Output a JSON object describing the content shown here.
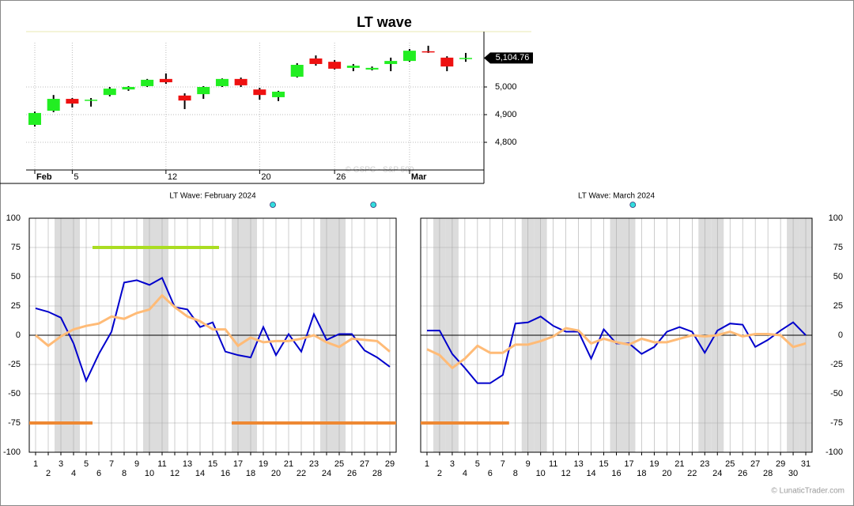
{
  "chart_data": [
    {
      "type": "candlestick",
      "title": "LT wave",
      "watermark": "© GSPC - S&P 500",
      "categories": [
        "Feb",
        null,
        "5",
        null,
        null,
        null,
        null,
        "12",
        null,
        null,
        null,
        null,
        "20",
        null,
        null,
        null,
        "26",
        null,
        null,
        null,
        "Mar",
        null,
        null,
        null
      ],
      "open": [
        4863,
        4914,
        4957,
        4951,
        4971,
        4991,
        5003,
        5029,
        4969,
        4974,
        5003,
        5029,
        4991,
        4963,
        5037,
        5103,
        5091,
        5069,
        5063,
        5083,
        5094,
        5129,
        5106,
        5103
      ],
      "high": [
        4911,
        4971,
        4960,
        4960,
        5000,
        5003,
        5029,
        5049,
        4977,
        5003,
        5031,
        5034,
        4997,
        4986,
        5086,
        5114,
        5097,
        5083,
        5074,
        5106,
        5137,
        5149,
        5111,
        5123
      ],
      "low": [
        4857,
        4909,
        4926,
        4929,
        4966,
        4986,
        5000,
        5011,
        4920,
        4957,
        5000,
        5000,
        4954,
        4949,
        5034,
        5077,
        5063,
        5057,
        5060,
        5057,
        5091,
        5123,
        5057,
        5091
      ],
      "close": [
        4906,
        4957,
        4940,
        4954,
        4994,
        5000,
        5026,
        5017,
        4951,
        5000,
        5029,
        5006,
        4971,
        4983,
        5080,
        5083,
        5066,
        5077,
        5069,
        5094,
        5131,
        5126,
        5074,
        5105
      ],
      "colors": {
        "up": "#22ee22",
        "down": "#ee1111"
      },
      "ylim": [
        4700,
        5200
      ],
      "yticks": [
        {
          "value": 4800,
          "label": "4,800"
        },
        {
          "value": 4900,
          "label": "4,900"
        },
        {
          "value": 5000,
          "label": "5,000"
        }
      ],
      "last_price": {
        "value": 5104.76,
        "label": "5,104.76"
      }
    },
    {
      "type": "line",
      "title": "LT Wave: February 2024",
      "x": [
        1,
        2,
        3,
        4,
        5,
        6,
        7,
        8,
        9,
        10,
        11,
        12,
        13,
        14,
        15,
        16,
        17,
        18,
        19,
        20,
        21,
        22,
        23,
        24,
        25,
        26,
        27,
        28,
        29
      ],
      "series": [
        {
          "color": "#0000cc",
          "values": [
            23,
            20,
            15,
            -7,
            -39,
            -16,
            3,
            45,
            47,
            43,
            49,
            24,
            22,
            7,
            11,
            -14,
            -17,
            -19,
            7,
            -17,
            1,
            -14,
            18,
            -4,
            1,
            1,
            -13,
            -19,
            -27
          ]
        },
        {
          "color": "#ffbb77",
          "values": [
            0,
            -9,
            -1,
            5,
            8,
            10,
            16,
            14,
            19,
            22,
            34,
            24,
            16,
            12,
            5,
            5,
            -9,
            -2,
            -6,
            -5,
            -5,
            -3,
            0,
            -6,
            -10,
            -3,
            -4,
            -5,
            -14
          ]
        }
      ],
      "bands": [
        {
          "value": -75,
          "from": 0.5,
          "to": 5.5,
          "color": "#ee8833"
        },
        {
          "value": 75,
          "from": 5.5,
          "to": 15.5,
          "color": "#aadd22"
        },
        {
          "value": -75,
          "from": 16.5,
          "to": 29.5,
          "color": "#ee8833"
        }
      ],
      "markers": {
        "x": [
          19.75,
          27.7
        ],
        "color": "#33dddd"
      },
      "shaded_days": [
        3,
        4,
        10,
        11,
        17,
        18,
        24,
        25
      ],
      "xlim": [
        0.5,
        29.5
      ],
      "xticks": [
        1,
        2,
        3,
        4,
        5,
        6,
        7,
        8,
        9,
        10,
        11,
        12,
        13,
        14,
        15,
        16,
        17,
        18,
        19,
        20,
        21,
        22,
        23,
        24,
        25,
        26,
        27,
        28,
        29
      ],
      "ylim": [
        -100,
        100
      ],
      "yticks": [
        -100,
        -75,
        -50,
        -25,
        0,
        25,
        50,
        75,
        100
      ],
      "yaxis_side": "left",
      "grid": true
    },
    {
      "type": "line",
      "title": "LT Wave: March 2024",
      "x": [
        1,
        2,
        3,
        4,
        5,
        6,
        7,
        8,
        9,
        10,
        11,
        12,
        13,
        14,
        15,
        16,
        17,
        18,
        19,
        20,
        21,
        22,
        23,
        24,
        25,
        26,
        27,
        28,
        29,
        30,
        31
      ],
      "series": [
        {
          "color": "#0000cc",
          "values": [
            4,
            4,
            -16,
            -28,
            -41,
            -41,
            -34,
            10,
            11,
            16,
            8,
            3,
            3,
            -20,
            5,
            -7,
            -7,
            -16,
            -10,
            3,
            7,
            3,
            -15,
            4,
            10,
            9,
            -10,
            -4,
            4,
            11,
            0
          ]
        },
        {
          "color": "#ffbb77",
          "values": [
            -12,
            -17,
            -28,
            -20,
            -9,
            -15,
            -15,
            -8,
            -8,
            -5,
            -1,
            6,
            4,
            -7,
            -3,
            -6,
            -8,
            -3,
            -6,
            -6,
            -3,
            0,
            -1,
            0,
            3,
            -1,
            1,
            1,
            0,
            -10,
            -7
          ]
        }
      ],
      "bands": [
        {
          "value": -75,
          "from": 0.5,
          "to": 7.5,
          "color": "#ee8833"
        }
      ],
      "markers": {
        "x": [
          17.3
        ],
        "color": "#33dddd"
      },
      "shaded_days": [
        2,
        3,
        9,
        10,
        16,
        17,
        23,
        24,
        30,
        31
      ],
      "xlim": [
        0.5,
        31.5
      ],
      "xticks": [
        1,
        2,
        3,
        4,
        5,
        6,
        7,
        8,
        9,
        10,
        11,
        12,
        13,
        14,
        15,
        16,
        17,
        18,
        19,
        20,
        21,
        22,
        23,
        24,
        25,
        26,
        27,
        28,
        29,
        30,
        31
      ],
      "ylim": [
        -100,
        100
      ],
      "yticks": [
        -100,
        -75,
        -50,
        -25,
        0,
        25,
        50,
        75,
        100
      ],
      "yaxis_side": "right",
      "grid": true
    }
  ],
  "footer": "© LunaticTrader.com"
}
